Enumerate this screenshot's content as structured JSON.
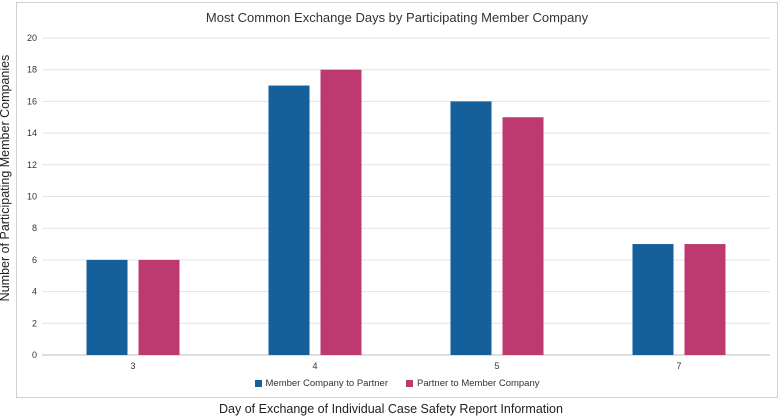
{
  "chart_data": {
    "type": "bar",
    "title": "Most Common Exchange Days by Participating Member Company",
    "xlabel": "Day of Exchange of Individual Case Safety Report Information",
    "ylabel": "Number of Participating Member Companies",
    "categories": [
      "3",
      "4",
      "5",
      "7"
    ],
    "series": [
      {
        "name": "Member Company to Partner",
        "values": [
          6,
          17,
          16,
          7
        ],
        "color": "#155f9b"
      },
      {
        "name": "Partner to Member Company",
        "values": [
          6,
          18,
          15,
          7
        ],
        "color": "#bd3a71"
      }
    ],
    "ylim": [
      0,
      20
    ],
    "yticks": [
      "0",
      "2",
      "4",
      "6",
      "8",
      "10",
      "12",
      "14",
      "16",
      "18",
      "20"
    ],
    "grid": true,
    "legend_position": "bottom"
  }
}
